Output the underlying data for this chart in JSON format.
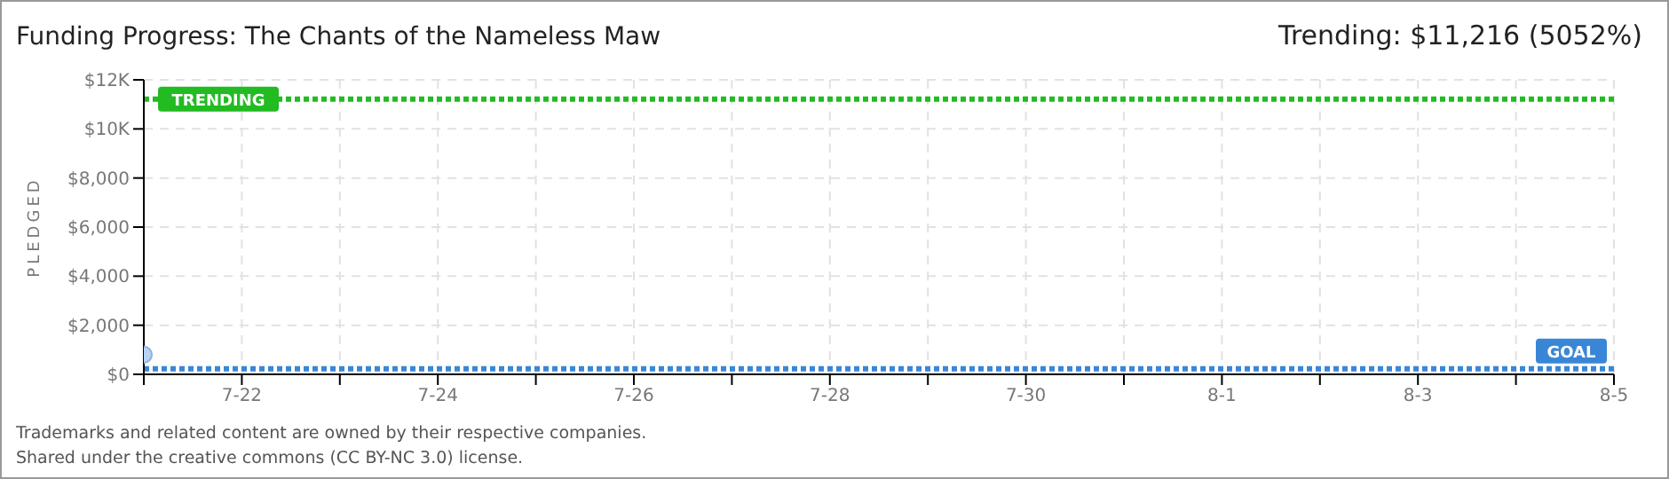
{
  "chart_data": {
    "type": "scatter",
    "title": "Funding Progress: The Chants of the Nameless Maw",
    "subtitle": "Trending: $11,216 (5052%)",
    "ylabel": "PLEDGED",
    "x": [
      "--07-21"
    ],
    "values": [
      800
    ],
    "color": "#b8d4f5",
    "marker": "circle",
    "xlim": [
      "--07-21",
      "--08-05"
    ],
    "xticks": [
      {
        "value": "--07-21",
        "label": null
      },
      {
        "value": "--07-22",
        "label": "7-22"
      },
      {
        "value": "--07-23",
        "label": null
      },
      {
        "value": "--07-24",
        "label": "7-24"
      },
      {
        "value": "--07-25",
        "label": null
      },
      {
        "value": "--07-26",
        "label": "7-26"
      },
      {
        "value": "--07-27",
        "label": null
      },
      {
        "value": "--07-28",
        "label": "7-28"
      },
      {
        "value": "--07-29",
        "label": null
      },
      {
        "value": "--07-30",
        "label": "7-30"
      },
      {
        "value": "--07-31",
        "label": null
      },
      {
        "value": "--08-01",
        "label": "8-1"
      },
      {
        "value": "--08-02",
        "label": null
      },
      {
        "value": "--08-03",
        "label": "8-3"
      },
      {
        "value": "--08-04",
        "label": null
      },
      {
        "value": "--08-05",
        "label": "8-5"
      }
    ],
    "ylim": [
      0,
      12000
    ],
    "yticks": [
      {
        "value": 0,
        "label": "$0"
      },
      {
        "value": 2000,
        "label": "$2,000"
      },
      {
        "value": 4000,
        "label": "$4,000"
      },
      {
        "value": 6000,
        "label": "$6,000"
      },
      {
        "value": 8000,
        "label": "$8,000"
      },
      {
        "value": 10000,
        "label": "$10K"
      },
      {
        "value": 12000,
        "label": "$12K"
      }
    ],
    "grid": true,
    "ref_lines": [
      {
        "axis": "y",
        "value": 11216,
        "label": "TRENDING",
        "color": "#22bb22",
        "line_style": "dotted"
      },
      {
        "axis": "y",
        "value": 222,
        "label": "GOAL",
        "color": "#3a86d6",
        "line_style": "dotted"
      }
    ],
    "annotations": [
      "Trademarks and related content are owned by their respective companies.",
      "Shared under the creative commons (CC BY-NC 3.0) license."
    ]
  }
}
